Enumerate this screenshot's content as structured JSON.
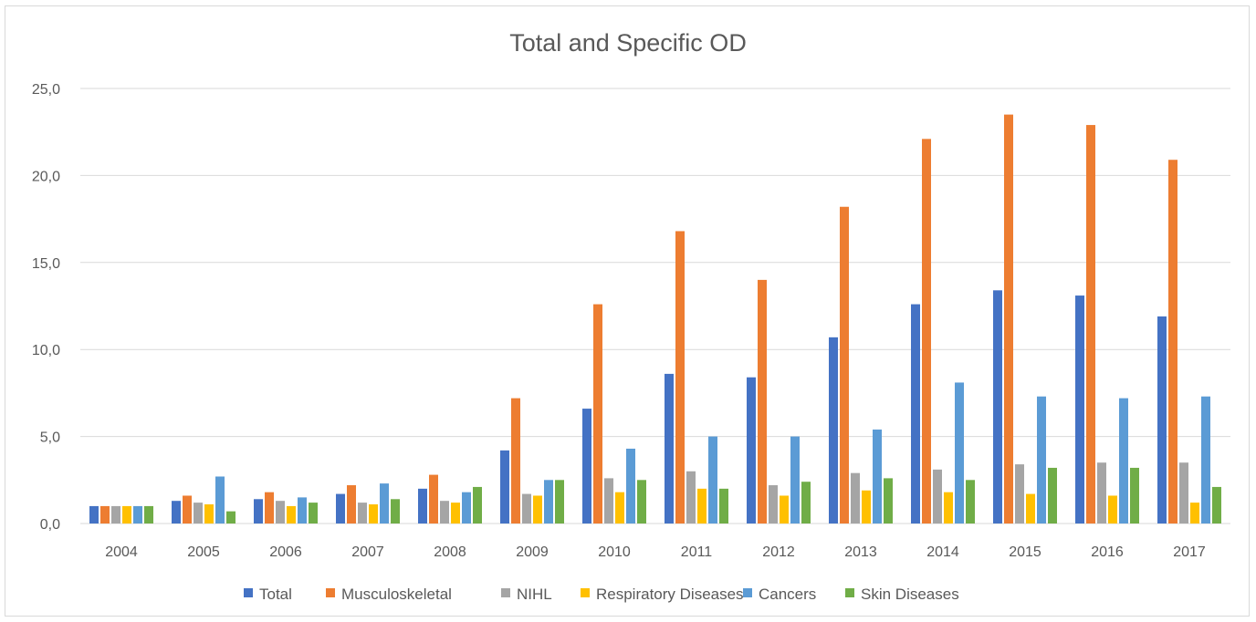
{
  "chart_data": {
    "type": "bar",
    "title": "Total and Specific OD",
    "xlabel": "",
    "ylabel": "",
    "ylim": [
      0,
      25
    ],
    "y_ticks": [
      "0,0",
      "5,0",
      "10,0",
      "15,0",
      "20,0",
      "25,0"
    ],
    "grid": true,
    "legend_position": "bottom",
    "categories": [
      "2004",
      "2005",
      "2006",
      "2007",
      "2008",
      "2009",
      "2010",
      "2011",
      "2012",
      "2013",
      "2014",
      "2015",
      "2016",
      "2017"
    ],
    "series": [
      {
        "name": "Total",
        "color": "#4472c4",
        "values": [
          1.0,
          1.3,
          1.4,
          1.7,
          2.0,
          4.2,
          6.6,
          8.6,
          8.4,
          10.7,
          12.6,
          13.4,
          13.1,
          11.9
        ]
      },
      {
        "name": "Musculoskeletal",
        "color": "#ed7d31",
        "values": [
          1.0,
          1.6,
          1.8,
          2.2,
          2.8,
          7.2,
          12.6,
          16.8,
          14.0,
          18.2,
          22.1,
          23.5,
          22.9,
          20.9
        ]
      },
      {
        "name": "NIHL",
        "color": "#a5a5a5",
        "values": [
          1.0,
          1.2,
          1.3,
          1.2,
          1.3,
          1.7,
          2.6,
          3.0,
          2.2,
          2.9,
          3.1,
          3.4,
          3.5,
          3.5
        ]
      },
      {
        "name": "Respiratory Diseases",
        "color": "#ffc000",
        "values": [
          1.0,
          1.1,
          1.0,
          1.1,
          1.2,
          1.6,
          1.8,
          2.0,
          1.6,
          1.9,
          1.8,
          1.7,
          1.6,
          1.2
        ]
      },
      {
        "name": "Cancers",
        "color": "#5b9bd5",
        "values": [
          1.0,
          2.7,
          1.5,
          2.3,
          1.8,
          2.5,
          4.3,
          5.0,
          5.0,
          5.4,
          8.1,
          7.3,
          7.2,
          7.3
        ]
      },
      {
        "name": "Skin Diseases",
        "color": "#70ad47",
        "values": [
          1.0,
          0.7,
          1.2,
          1.4,
          2.1,
          2.5,
          2.5,
          2.0,
          2.4,
          2.6,
          2.5,
          3.2,
          3.2,
          2.1
        ]
      }
    ]
  }
}
